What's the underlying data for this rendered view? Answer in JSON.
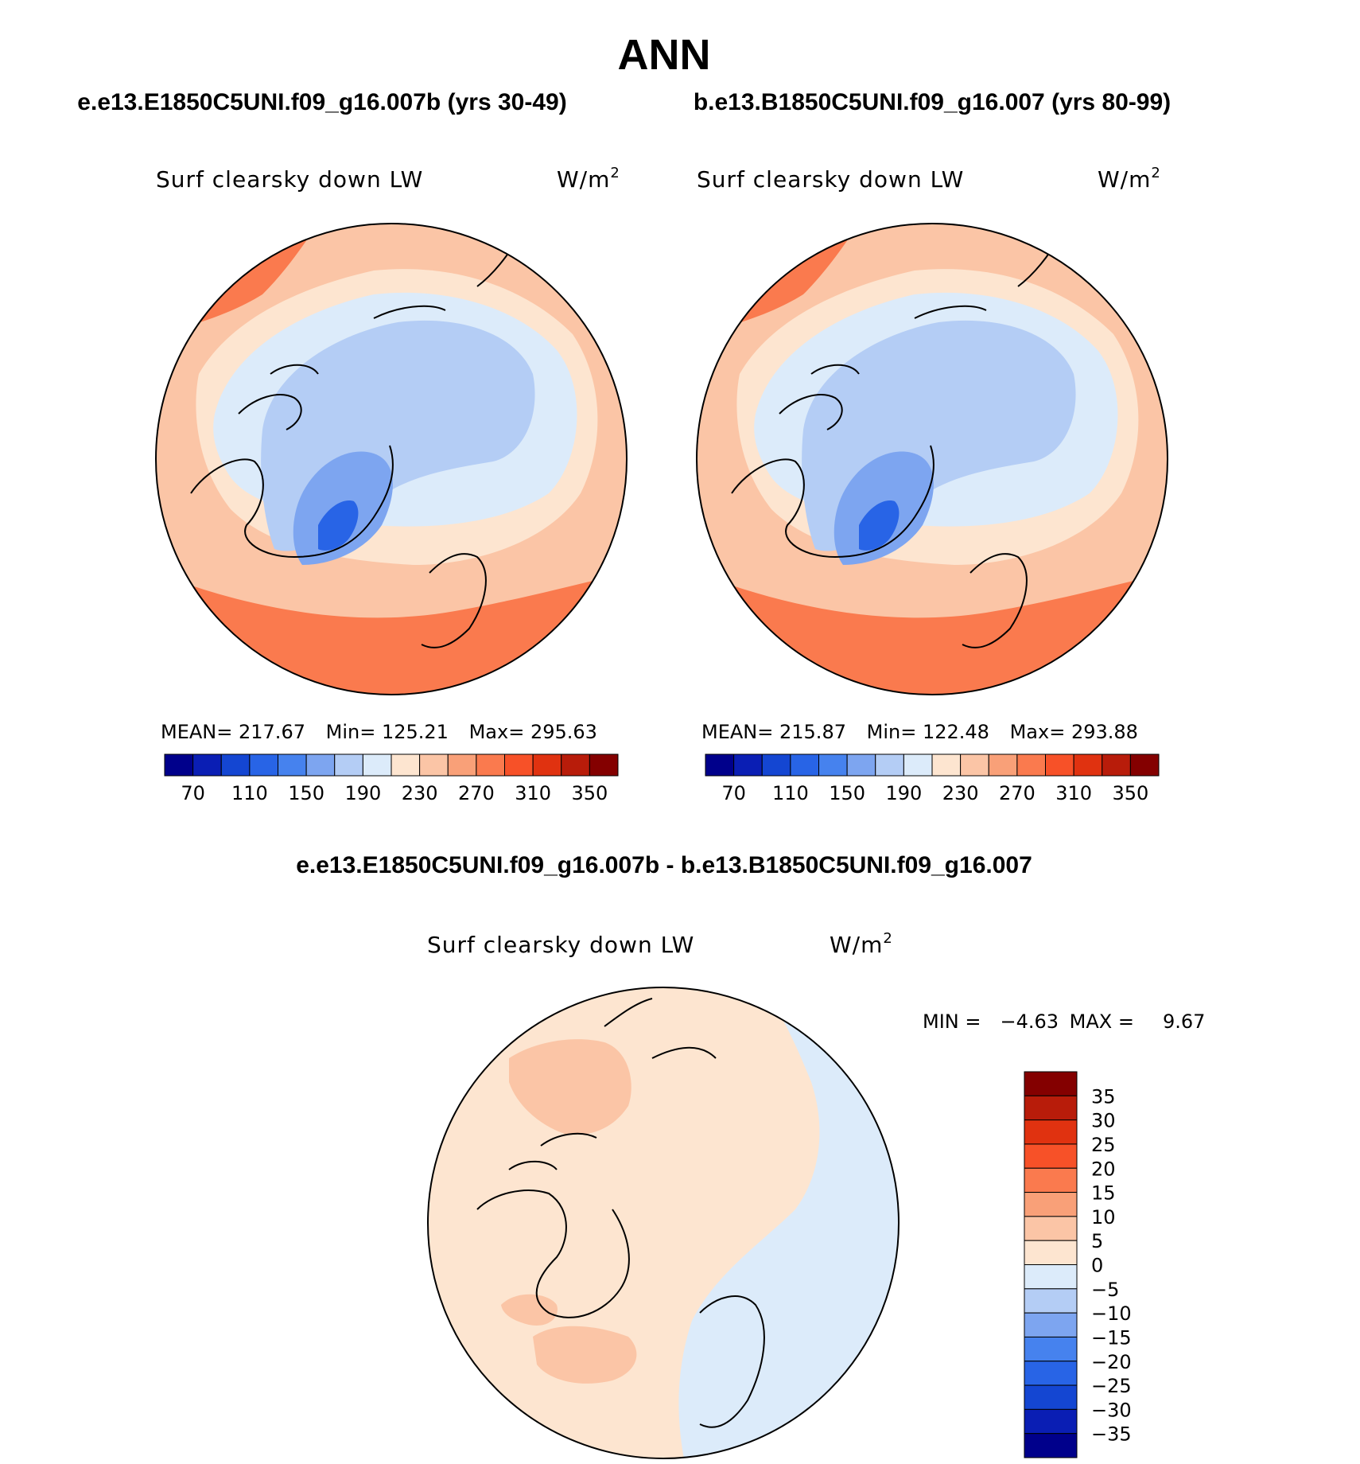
{
  "title": "ANN",
  "subtitle": {
    "case1": "e.e13.E1850C5UNI.f09_g16.007b (yrs 30-49)",
    "case2": "b.e13.B1850C5UNI.f09_g16.007 (yrs 80-99)"
  },
  "panels": [
    {
      "variable": "Surf clearsky down LW",
      "units": "W/m",
      "units_sup": "2",
      "stats": {
        "mean_label": "MEAN=",
        "mean": "217.67",
        "min_label": "Min=",
        "min": "125.21",
        "max_label": "Max=",
        "max": "295.63"
      }
    },
    {
      "variable": "Surf clearsky down LW",
      "units": "W/m",
      "units_sup": "2",
      "stats": {
        "mean_label": "MEAN=",
        "mean": "215.87",
        "min_label": "Min=",
        "min": "122.48",
        "max_label": "Max=",
        "max": "293.88"
      }
    }
  ],
  "colorbar_abs": {
    "colors": [
      "#00008b",
      "#0a1eb4",
      "#1446d2",
      "#2864e6",
      "#4682ee",
      "#7da5f0",
      "#b4cdf5",
      "#dcebfa",
      "#fde5d0",
      "#fbc5a6",
      "#f9a078",
      "#fa7a4e",
      "#f75128",
      "#e03210",
      "#b81c0a",
      "#840000"
    ],
    "tick_labels": [
      "70",
      "110",
      "150",
      "190",
      "230",
      "270",
      "310",
      "350"
    ]
  },
  "diff_title": "e.e13.E1850C5UNI.f09_g16.007b - b.e13.B1850C5UNI.f09_g16.007",
  "diff_panel": {
    "variable": "Surf clearsky down LW",
    "units": "W/m",
    "units_sup": "2",
    "min_label": "MIN =",
    "min": "−4.63",
    "max_label": "MAX =",
    "max": "9.67"
  },
  "colorbar_diff": {
    "colors": [
      "#00008b",
      "#0a1eb4",
      "#1446d2",
      "#2864e6",
      "#4682ee",
      "#7da5f0",
      "#b4cdf5",
      "#dcebfa",
      "#fde5d0",
      "#fbc5a6",
      "#f9a078",
      "#fa7a4e",
      "#f75128",
      "#e03210",
      "#b81c0a",
      "#840000"
    ],
    "tick_labels": [
      "35",
      "30",
      "25",
      "20",
      "15",
      "10",
      "5",
      "0",
      "−5",
      "−10",
      "−15",
      "−20",
      "−25",
      "−30",
      "−35"
    ]
  },
  "map_colors": {
    "warm_dark": "#f9a078",
    "warm_strong": "#fa7a4e",
    "warm_light": "#fbc5a6",
    "warm_pale": "#fde5d0",
    "cool_pale": "#dcebfa",
    "cool_light": "#b4cdf5",
    "cool_mid": "#7da5f0",
    "cool_deep": "#2864e6"
  }
}
